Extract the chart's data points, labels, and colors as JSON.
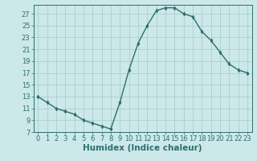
{
  "x": [
    0,
    1,
    2,
    3,
    4,
    5,
    6,
    7,
    8,
    9,
    10,
    11,
    12,
    13,
    14,
    15,
    16,
    17,
    18,
    19,
    20,
    21,
    22,
    23
  ],
  "y": [
    13,
    12,
    11,
    10.5,
    10,
    9,
    8.5,
    8,
    7.5,
    12,
    17.5,
    22,
    25,
    27.5,
    28,
    28,
    27,
    26.5,
    24,
    22.5,
    20.5,
    18.5,
    17.5,
    17
  ],
  "line_color": "#2d6e6e",
  "marker": "d",
  "marker_size": 2.5,
  "bg_color": "#cce8e8",
  "grid_color": "#aad0d0",
  "xlabel": "Humidex (Indice chaleur)",
  "ylabel": "",
  "xlim": [
    -0.5,
    23.5
  ],
  "ylim": [
    7,
    28.5
  ],
  "yticks": [
    7,
    9,
    11,
    13,
    15,
    17,
    19,
    21,
    23,
    25,
    27
  ],
  "xticks": [
    0,
    1,
    2,
    3,
    4,
    5,
    6,
    7,
    8,
    9,
    10,
    11,
    12,
    13,
    14,
    15,
    16,
    17,
    18,
    19,
    20,
    21,
    22,
    23
  ],
  "tick_color": "#2d6e6e",
  "tick_labelsize": 6,
  "xlabel_fontsize": 7.5,
  "line_width": 1.0
}
